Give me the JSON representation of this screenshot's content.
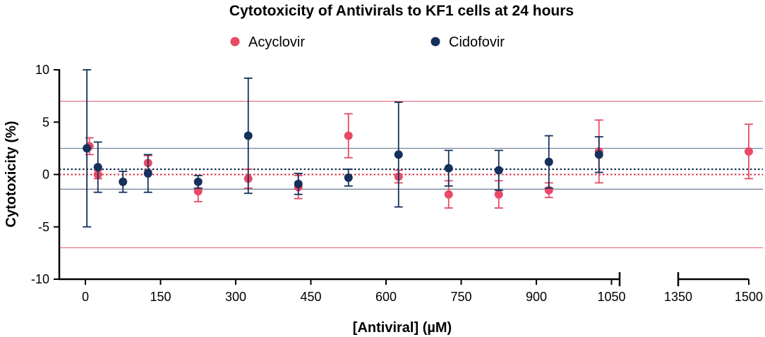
{
  "chart_data": {
    "type": "scatter",
    "title": "Cytotoxicity of Antivirals to KF1 cells at 24 hours",
    "xlabel": "[Antiviral] (µM)",
    "ylabel": "Cytotoxicity (%)",
    "ylim": [
      -10,
      10
    ],
    "yticks": [
      10,
      5,
      0,
      -5,
      -10
    ],
    "yticks_labels": [
      "10",
      "5",
      "0",
      "-5",
      "-10"
    ],
    "x_segments": [
      {
        "range": [
          -70,
          1050
        ],
        "ticks": [
          0,
          150,
          300,
          450,
          600,
          750,
          900,
          1050
        ],
        "tick_labels": [
          "0",
          "150",
          "300",
          "450",
          "600",
          "750",
          "900",
          "1050"
        ]
      },
      {
        "range": [
          1350,
          1500
        ],
        "ticks": [
          1350,
          1500
        ],
        "tick_labels": [
          "1350",
          "1500"
        ]
      }
    ],
    "legend": {
      "position": "top"
    },
    "reference_lines": [
      {
        "series": "Acyclovir",
        "y": 7,
        "style": "solid",
        "color": "#e5677a"
      },
      {
        "series": "Acyclovir",
        "y": -7,
        "style": "solid",
        "color": "#e5677a"
      },
      {
        "series": "Cidofovir",
        "y": 2.5,
        "style": "solid",
        "color": "#5c7089"
      },
      {
        "series": "Cidofovir",
        "y": -1.4,
        "style": "solid",
        "color": "#5c7089"
      },
      {
        "series": "Cidofovir",
        "y": 0.5,
        "style": "dotted",
        "color": "#122a4a"
      },
      {
        "series": "Acyclovir",
        "y": 0.0,
        "style": "dotted",
        "color": "#e0435c"
      }
    ],
    "series": [
      {
        "name": "Acyclovir",
        "color": "#e84a66",
        "points": [
          {
            "x": 8,
            "y": 2.7,
            "err": 0.8
          },
          {
            "x": 25,
            "y": 0.0,
            "err": 0.4
          },
          {
            "x": 125,
            "y": 1.1,
            "err": 0.7
          },
          {
            "x": 225,
            "y": -1.6,
            "err": 1.0
          },
          {
            "x": 325,
            "y": -0.4,
            "err": 0.9
          },
          {
            "x": 425,
            "y": -1.2,
            "err": 1.1
          },
          {
            "x": 525,
            "y": 3.7,
            "err": 2.1
          },
          {
            "x": 625,
            "y": -0.2,
            "err": 0.6
          },
          {
            "x": 725,
            "y": -1.9,
            "err": 1.3
          },
          {
            "x": 825,
            "y": -1.9,
            "err": 1.3
          },
          {
            "x": 925,
            "y": -1.5,
            "err": 0.7
          },
          {
            "x": 1025,
            "y": 2.2,
            "err": 3.0
          },
          {
            "x": 1500,
            "y": 2.2,
            "err": 2.6
          }
        ]
      },
      {
        "name": "Cidofovir",
        "color": "#15305a",
        "points": [
          {
            "x": 3,
            "y": 2.5,
            "err": 7.5
          },
          {
            "x": 25,
            "y": 0.7,
            "err": 2.4
          },
          {
            "x": 75,
            "y": -0.7,
            "err": 1.0
          },
          {
            "x": 125,
            "y": 0.1,
            "err": 1.8
          },
          {
            "x": 225,
            "y": -0.7,
            "err": 0.6
          },
          {
            "x": 325,
            "y": 3.7,
            "err": 5.5
          },
          {
            "x": 425,
            "y": -0.9,
            "err": 1.0
          },
          {
            "x": 525,
            "y": -0.3,
            "err": 0.8
          },
          {
            "x": 625,
            "y": 1.9,
            "err": 5.0
          },
          {
            "x": 725,
            "y": 0.6,
            "err": 1.7
          },
          {
            "x": 825,
            "y": 0.4,
            "err": 1.9
          },
          {
            "x": 925,
            "y": 1.2,
            "err": 2.5
          },
          {
            "x": 1025,
            "y": 1.9,
            "err": 1.7
          }
        ]
      }
    ]
  }
}
